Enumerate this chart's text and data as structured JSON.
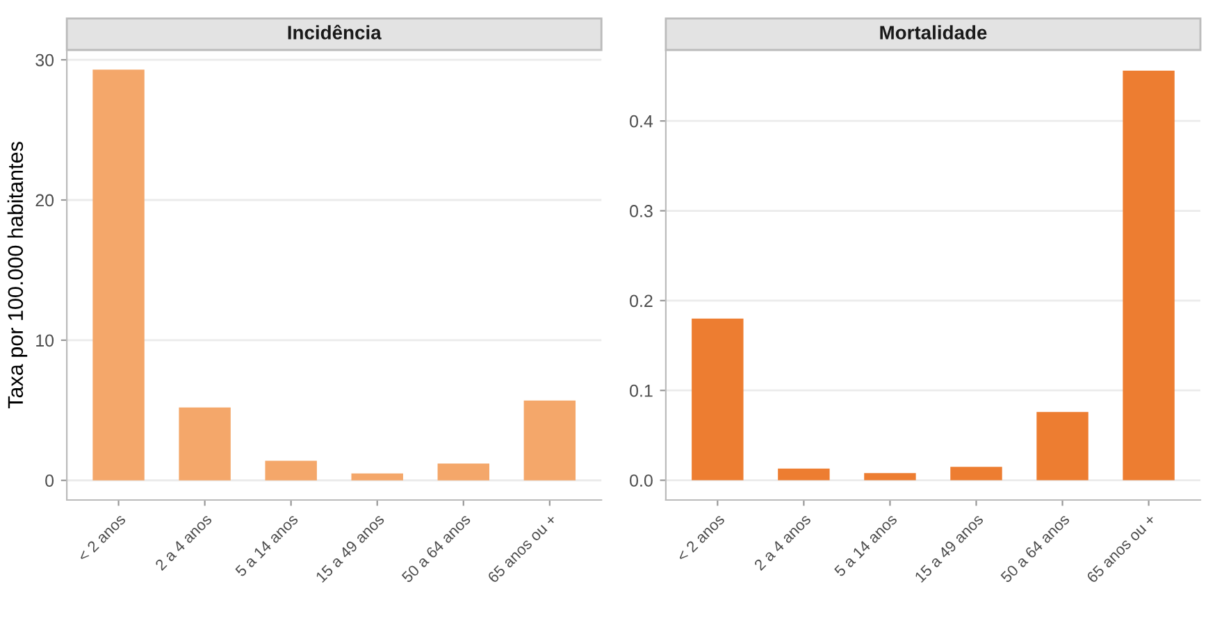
{
  "chart_data": [
    {
      "type": "bar",
      "title": "Incidência",
      "ylabel": "Taxa por 100.000 habitantes",
      "categories": [
        "< 2 anos",
        "2 a 4 anos",
        "5 a 14 anos",
        "15 a 49 anos",
        "50 a 64 anos",
        "65 anos ou +"
      ],
      "series": [
        {
          "color": "#f4a76a",
          "values": [
            29.3,
            5.2,
            1.4,
            0.5,
            1.2,
            5.7
          ]
        }
      ],
      "ylim": [
        -1.4,
        30.7
      ],
      "yticks": [
        0,
        10,
        20,
        30
      ],
      "grid": "y",
      "legend": false
    },
    {
      "type": "bar",
      "title": "Mortalidade",
      "categories": [
        "< 2 anos",
        "2 a 4 anos",
        "5 a 14 anos",
        "15 a 49 anos",
        "50 a 64 anos",
        "65 anos ou +"
      ],
      "series": [
        {
          "color": "#ed7d31",
          "values": [
            0.18,
            0.013,
            0.008,
            0.015,
            0.076,
            0.456
          ]
        }
      ],
      "ylim": [
        -0.022,
        0.479
      ],
      "yticks": [
        {
          "value": 0,
          "label": "0.0"
        },
        0.1,
        0.2,
        0.3,
        0.4
      ],
      "grid": "y",
      "legend": false
    }
  ]
}
